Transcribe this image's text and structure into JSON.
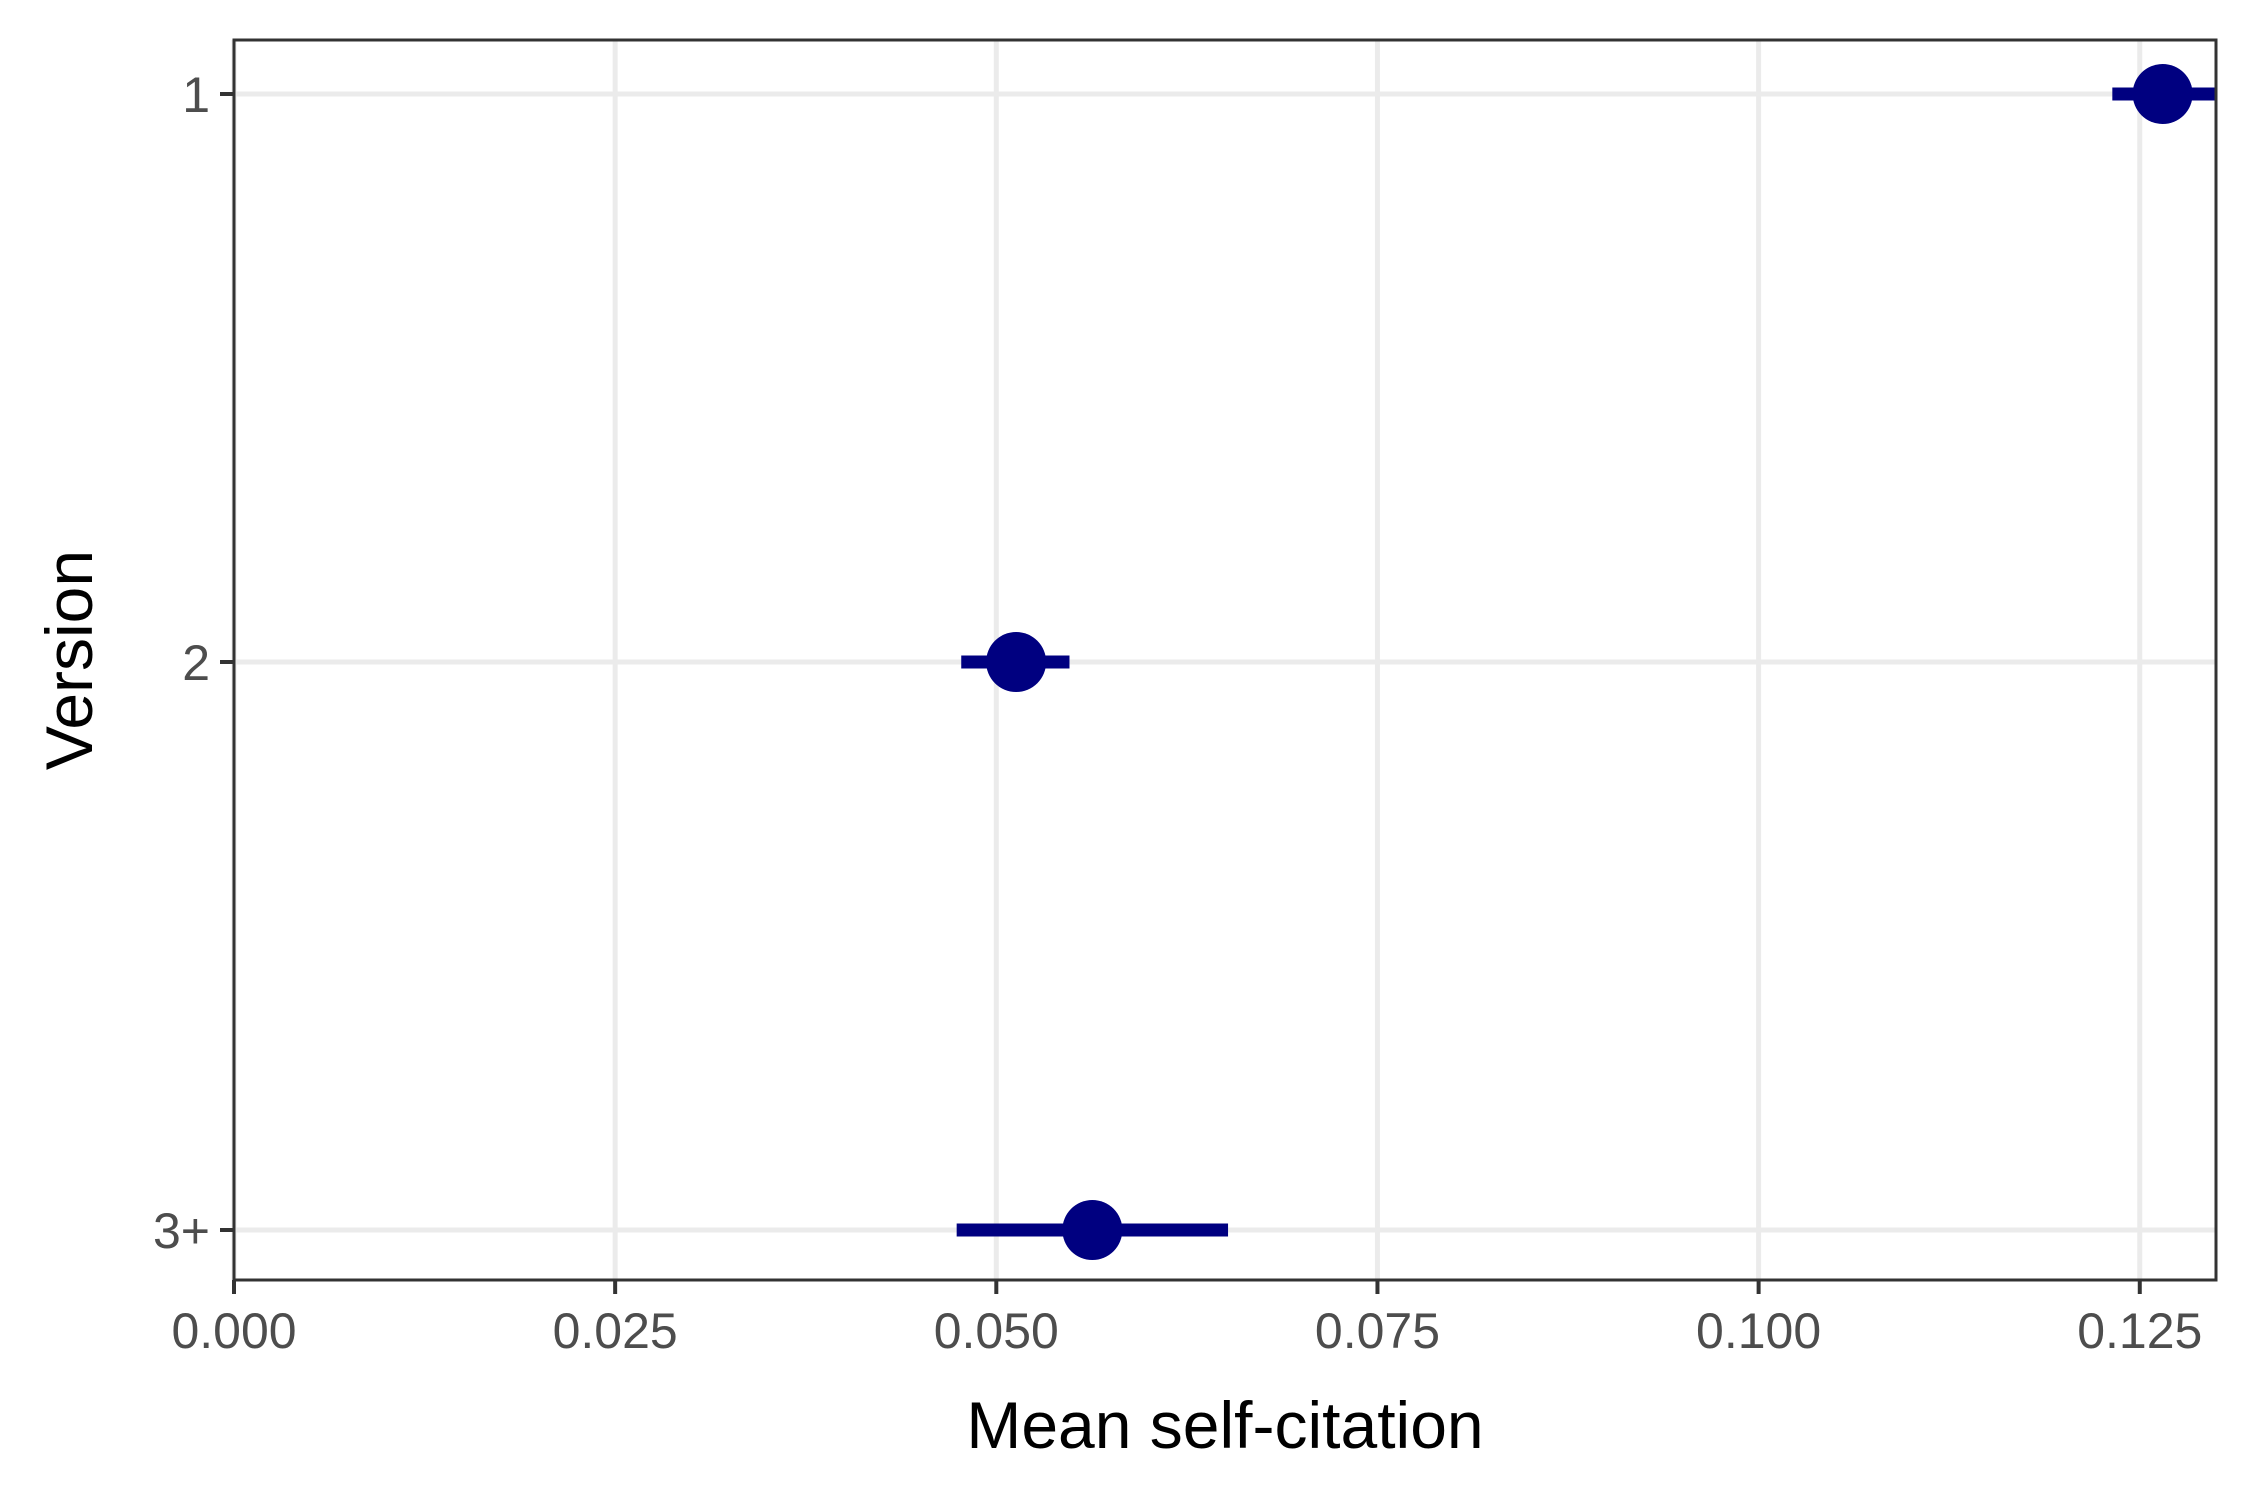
{
  "chart_data": {
    "type": "scatter",
    "title": "",
    "xlabel": "Mean self-citation",
    "ylabel": "Version",
    "xlim": [
      0.0,
      0.13
    ],
    "x_ticks": [
      "0.000",
      "0.025",
      "0.050",
      "0.075",
      "0.100",
      "0.125"
    ],
    "x_tick_values": [
      0.0,
      0.025,
      0.05,
      0.075,
      0.1,
      0.125
    ],
    "categories": [
      "1",
      "2",
      "3+"
    ],
    "grid": true,
    "legend": "none",
    "colors": {
      "points": "#000080",
      "grid": "#ebebeb",
      "axis": "#333333"
    },
    "series": [
      {
        "points": [
          {
            "category": "1",
            "mean": 0.1265,
            "low": 0.1232,
            "high": 0.13
          },
          {
            "category": "2",
            "mean": 0.0513,
            "low": 0.0477,
            "high": 0.0548
          },
          {
            "category": "3+",
            "mean": 0.0563,
            "low": 0.0474,
            "high": 0.0652
          }
        ]
      }
    ]
  }
}
